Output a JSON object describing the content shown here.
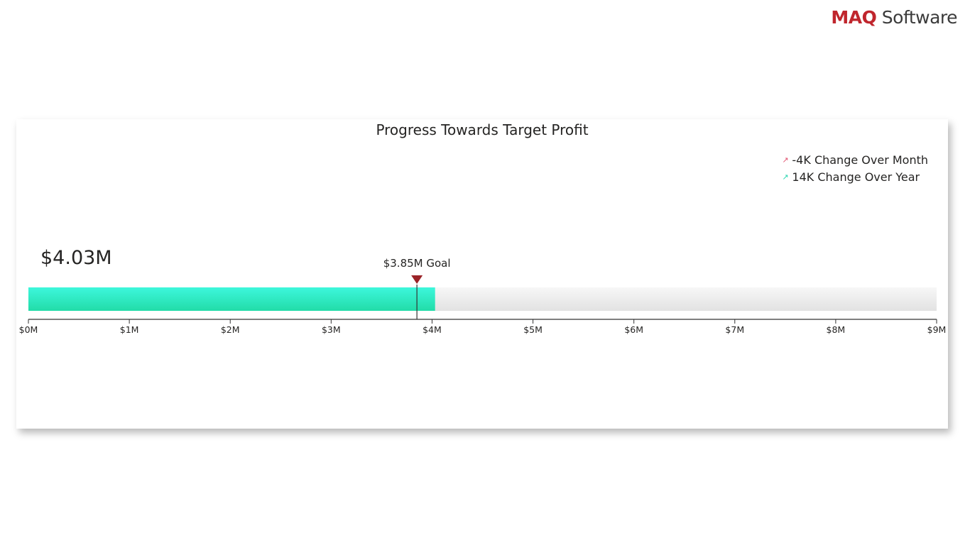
{
  "logo": {
    "brand": "MAQ",
    "rest": " Software"
  },
  "colors": {
    "bar_top": "#3df7dc",
    "bar_bottom": "#22dca8",
    "track_top": "#f7f7f7",
    "track_bottom": "#e2e2e2",
    "goal_marker": "#9b2328",
    "trend_negative": "#e25572",
    "trend_positive": "#2ad6b0"
  },
  "trends": [
    {
      "text": "-4K Change Over Month",
      "icon": "trend-up-arrow-icon",
      "kind": "neg"
    },
    {
      "text": "14K Change Over Year",
      "icon": "trend-up-arrow-icon",
      "kind": "pos"
    }
  ],
  "chart_data": {
    "type": "bullet",
    "title": "Progress Towards Target Profit",
    "value": 4.03,
    "value_label": "$4.03M",
    "goal": 3.85,
    "goal_label": "$3.85M Goal",
    "unit": "$M",
    "xlim": [
      0,
      9
    ],
    "ticks": [
      {
        "value": 0,
        "label": "$0M"
      },
      {
        "value": 1,
        "label": "$1M"
      },
      {
        "value": 2,
        "label": "$2M"
      },
      {
        "value": 3,
        "label": "$3M"
      },
      {
        "value": 4,
        "label": "$4M"
      },
      {
        "value": 5,
        "label": "$5M"
      },
      {
        "value": 6,
        "label": "$6M"
      },
      {
        "value": 7,
        "label": "$7M"
      },
      {
        "value": 8,
        "label": "$8M"
      },
      {
        "value": 9,
        "label": "$9M"
      }
    ]
  }
}
